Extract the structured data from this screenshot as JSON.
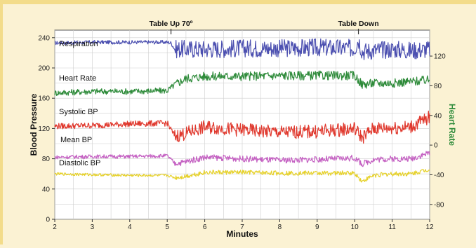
{
  "chart_data": {
    "type": "line",
    "xlabel": "Minutes",
    "ylabel_left": "Blood Pressure",
    "ylabel_right": "Heart Rate",
    "xlim": [
      2,
      12
    ],
    "ylim_left": [
      0,
      250
    ],
    "ylim_right": [
      -100,
      155
    ],
    "x_ticks": [
      2,
      3,
      4,
      5,
      6,
      7,
      8,
      9,
      10,
      11,
      12
    ],
    "y_ticks_left": [
      0,
      40,
      80,
      120,
      160,
      200,
      240
    ],
    "y_ticks_right": [
      -80,
      -40,
      0,
      40,
      80,
      120
    ],
    "grid": true,
    "annotations": [
      {
        "text": "Table Up 70º",
        "x": 5.1
      },
      {
        "text": "Table Down",
        "x": 10.1
      }
    ],
    "series": [
      {
        "name": "Respiration",
        "color": "#4b4fb0",
        "x": [
          2,
          3,
          4,
          5,
          5.1,
          5.2,
          6,
          7,
          8,
          9,
          10,
          10.1,
          10.2,
          11,
          11.5,
          12
        ],
        "y": [
          233,
          234,
          234,
          234,
          233,
          225,
          225,
          226,
          226,
          227,
          226,
          238,
          222,
          225,
          223,
          225
        ]
      },
      {
        "name": "Heart Rate",
        "color": "#2e8b3a",
        "x": [
          2,
          3,
          4,
          5,
          5.2,
          5.5,
          6,
          7,
          8,
          9,
          10,
          10.2,
          10.5,
          11,
          11.5,
          12
        ],
        "y": [
          167,
          169,
          169,
          170,
          178,
          186,
          189,
          189,
          190,
          190,
          190,
          178,
          180,
          180,
          182,
          184
        ]
      },
      {
        "name": "Systolic BP",
        "color": "#e0382d",
        "x": [
          2,
          3,
          4,
          5,
          5.2,
          5.4,
          6,
          7,
          8,
          9,
          10,
          10.2,
          10.5,
          11,
          11.5,
          12
        ],
        "y": [
          123,
          124,
          126,
          127,
          110,
          112,
          122,
          118,
          115,
          116,
          120,
          108,
          120,
          121,
          122,
          135
        ]
      },
      {
        "name": "Mean BP",
        "color": "#c460c2",
        "x": [
          2,
          3,
          4,
          5,
          5.2,
          5.4,
          6,
          7,
          8,
          9,
          10,
          10.2,
          10.5,
          11,
          11.5,
          12
        ],
        "y": [
          82,
          83,
          83,
          84,
          74,
          75,
          82,
          80,
          78,
          79,
          81,
          73,
          79,
          80,
          80,
          88
        ]
      },
      {
        "name": "Diastolic BP",
        "color": "#e6d12a",
        "x": [
          2,
          3,
          4,
          5,
          5.2,
          5.4,
          6,
          7,
          8,
          9,
          10,
          10.2,
          10.5,
          11,
          11.5,
          12
        ],
        "y": [
          60,
          59,
          58,
          58,
          55,
          56,
          62,
          62,
          61,
          61,
          61,
          50,
          58,
          60,
          60,
          66
        ]
      }
    ]
  }
}
